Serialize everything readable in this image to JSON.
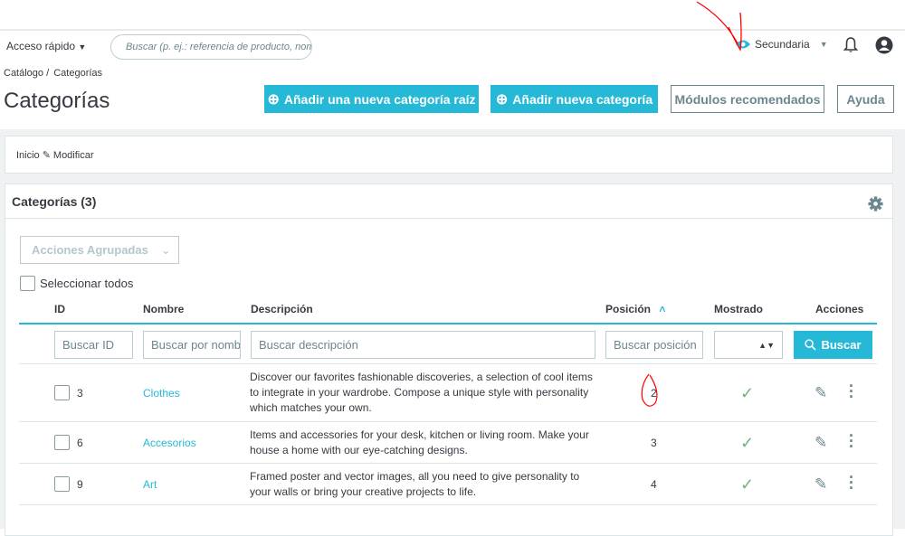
{
  "header": {
    "quick_access": "Acceso rápido",
    "search_placeholder": "Buscar (p. ej.: referencia de producto, nombre de cliente…)",
    "shop": "Secundaria"
  },
  "breadcrumb": {
    "parent": "Catálogo",
    "separator": "/",
    "current": "Categorías"
  },
  "page_title": "Categorías",
  "toolbar": {
    "add_root": "Añadir una nueva categoría raíz",
    "add": "Añadir nueva categoría",
    "modules": "Módulos recomendados",
    "help": "Ayuda"
  },
  "nav": {
    "home": "Inicio",
    "edit": "Modificar"
  },
  "panel": {
    "title": "Categorías (3)",
    "bulk_actions": "Acciones Agrupadas",
    "select_all": "Seleccionar todos"
  },
  "table": {
    "headers": {
      "id": "ID",
      "name": "Nombre",
      "description": "Descripción",
      "position": "Posición",
      "shown": "Mostrado",
      "actions": "Acciones"
    },
    "filters": {
      "id": "Buscar ID",
      "name": "Buscar por nombre",
      "description": "Buscar descripción",
      "position": "Buscar posición",
      "search_button": "Buscar"
    },
    "rows": [
      {
        "id": "3",
        "name": "Clothes",
        "description": "Discover our favorites fashionable discoveries, a selection of cool items to integrate in your wardrobe. Compose a unique style with personality which matches your own.",
        "position": "2",
        "shown": true
      },
      {
        "id": "6",
        "name": "Accesorios",
        "description": "Items and accessories for your desk, kitchen or living room. Make your house a home with our eye-catching designs.",
        "position": "3",
        "shown": true
      },
      {
        "id": "9",
        "name": "Art",
        "description": "Framed poster and vector images, all you need to give personality to your walls or bring your creative projects to life.",
        "position": "4",
        "shown": true
      }
    ]
  },
  "colors": {
    "primary": "#25b9d7",
    "check": "#70b580",
    "annotation": "#ff0000"
  }
}
